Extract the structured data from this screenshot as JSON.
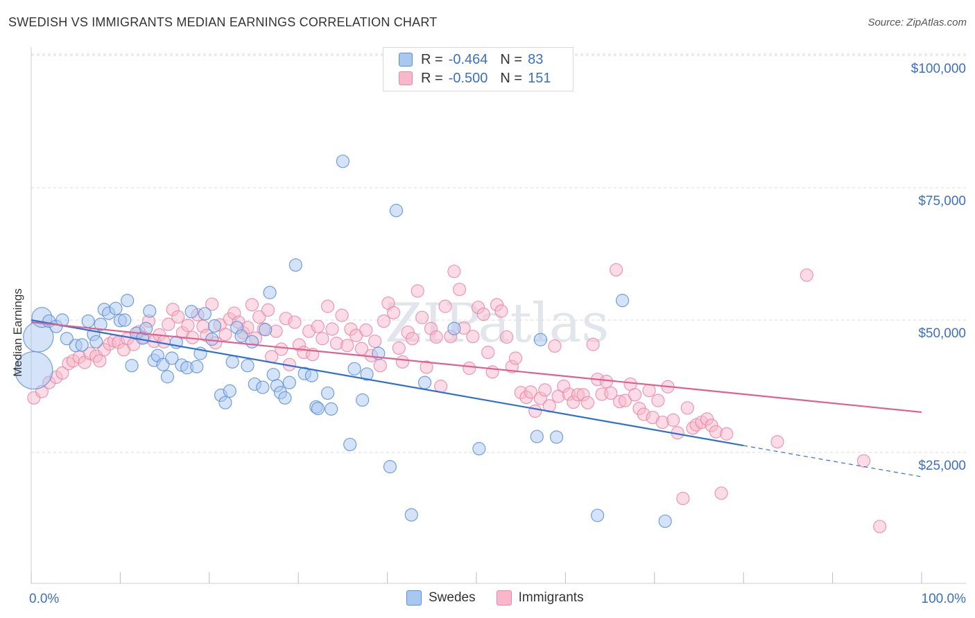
{
  "title": "SWEDISH VS IMMIGRANTS MEDIAN EARNINGS CORRELATION CHART",
  "source": "Source: ZipAtlas.com",
  "watermark": "ZIPatlas",
  "legend": {
    "swedes": {
      "r_label": "R =",
      "r_value": "-0.464",
      "n_label": "N =",
      "n_value": "83"
    },
    "immigrants": {
      "r_label": "R =",
      "r_value": "-0.500",
      "n_label": "N =",
      "n_value": "151"
    }
  },
  "colors": {
    "swedes_fill": "#a9c8f0",
    "swedes_stroke": "#5a8fd6",
    "swedes_line": "#2f6fd0",
    "immigrants_fill": "#f7b8cb",
    "immigrants_stroke": "#e987a6",
    "immigrants_line": "#e0608c",
    "tick_label": "#3a6fc4",
    "grid": "#d9d9d9"
  },
  "chart_data": {
    "type": "scatter",
    "xlabel": "",
    "ylabel": "Median Earnings",
    "xlim": [
      0,
      100
    ],
    "ylim": [
      5000,
      105000
    ],
    "x_tick_labels": [
      "0.0%",
      "100.0%"
    ],
    "y_ticks": [
      25000,
      50000,
      75000,
      100000
    ],
    "y_tick_labels": [
      "$25,000",
      "$50,000",
      "$75,000",
      "$100,000"
    ],
    "grid": true,
    "legend_position": "top-center",
    "series": [
      {
        "name": "Swedes",
        "trend": {
          "x0": 0,
          "y0": 50000,
          "x1": 80,
          "y1": 26300,
          "dashed_to_x": 100,
          "dashed_to_y": 20400
        },
        "points": [
          [
            0.3,
            40500,
            3
          ],
          [
            0.8,
            46800,
            2.4
          ],
          [
            1.2,
            50500,
            1.6
          ],
          [
            2,
            49800,
            1
          ],
          [
            2.8,
            48800,
            1
          ],
          [
            3.5,
            50000,
            1
          ],
          [
            4,
            46500,
            1
          ],
          [
            5,
            45200,
            1
          ],
          [
            5.7,
            45300,
            1
          ],
          [
            6.4,
            49800,
            1
          ],
          [
            7,
            47300,
            1
          ],
          [
            7.3,
            45900,
            1
          ],
          [
            7.8,
            49200,
            1
          ],
          [
            8.2,
            52000,
            1
          ],
          [
            8.7,
            51300,
            1
          ],
          [
            9.5,
            52200,
            1
          ],
          [
            10,
            49900,
            1
          ],
          [
            10.5,
            50000,
            1
          ],
          [
            10.8,
            53700,
            1
          ],
          [
            11.3,
            41400,
            1
          ],
          [
            11.8,
            47500,
            1
          ],
          [
            12.5,
            46600,
            1
          ],
          [
            12.9,
            48400,
            1
          ],
          [
            13.3,
            51700,
            1
          ],
          [
            13.8,
            42400,
            1
          ],
          [
            14.2,
            43300,
            1
          ],
          [
            14.8,
            41600,
            1
          ],
          [
            15.3,
            39300,
            1
          ],
          [
            15.8,
            42800,
            1
          ],
          [
            16.3,
            45800,
            1
          ],
          [
            16.9,
            41500,
            1
          ],
          [
            17.5,
            41000,
            1
          ],
          [
            18,
            51600,
            1
          ],
          [
            18.6,
            41200,
            1
          ],
          [
            19,
            43700,
            1
          ],
          [
            19.5,
            51200,
            1
          ],
          [
            20.3,
            46400,
            1
          ],
          [
            20.6,
            48900,
            1
          ],
          [
            21.3,
            35800,
            1
          ],
          [
            21.8,
            34400,
            1
          ],
          [
            22.3,
            36600,
            1
          ],
          [
            22.6,
            42100,
            1
          ],
          [
            23.1,
            48600,
            1
          ],
          [
            23.6,
            47000,
            1
          ],
          [
            24.3,
            41400,
            1
          ],
          [
            24.8,
            45900,
            1
          ],
          [
            25.1,
            37900,
            1
          ],
          [
            26,
            37300,
            1
          ],
          [
            26.3,
            48200,
            1
          ],
          [
            26.8,
            55200,
            1
          ],
          [
            27.2,
            39700,
            1
          ],
          [
            27.6,
            37600,
            1
          ],
          [
            28,
            36300,
            1
          ],
          [
            28.5,
            35300,
            1
          ],
          [
            29,
            38200,
            1
          ],
          [
            29.7,
            60400,
            1
          ],
          [
            30.7,
            39900,
            1
          ],
          [
            31.5,
            39500,
            1
          ],
          [
            32,
            33600,
            1
          ],
          [
            32.2,
            33300,
            1
          ],
          [
            33.3,
            36200,
            1
          ],
          [
            33.7,
            33200,
            1
          ],
          [
            35,
            80000,
            1
          ],
          [
            35.8,
            26500,
            1
          ],
          [
            36.3,
            40800,
            1
          ],
          [
            37.2,
            34900,
            1
          ],
          [
            37.7,
            39800,
            1
          ],
          [
            39,
            43700,
            1
          ],
          [
            40.3,
            22300,
            1
          ],
          [
            41,
            70700,
            1
          ],
          [
            42.7,
            13200,
            1
          ],
          [
            44.2,
            38200,
            1
          ],
          [
            47.5,
            48400,
            1
          ],
          [
            50.3,
            25700,
            1
          ],
          [
            56.8,
            28000,
            1
          ],
          [
            57.2,
            46300,
            1
          ],
          [
            59,
            27900,
            1
          ],
          [
            63.6,
            13100,
            1
          ],
          [
            66.4,
            53700,
            1
          ],
          [
            71.2,
            12000,
            1
          ]
        ]
      },
      {
        "name": "Immigrants",
        "trend": {
          "x0": 0,
          "y0": 49600,
          "x1": 100,
          "y1": 32600
        },
        "points": [
          [
            0.3,
            35300,
            1
          ],
          [
            1.2,
            36500,
            1
          ],
          [
            2,
            38200,
            1
          ],
          [
            2.8,
            39200,
            1
          ],
          [
            3.5,
            40000,
            1
          ],
          [
            4.2,
            41800,
            1
          ],
          [
            4.7,
            42300,
            1
          ],
          [
            5.4,
            43000,
            1
          ],
          [
            6,
            42000,
            1
          ],
          [
            6.6,
            43700,
            1
          ],
          [
            7.3,
            43200,
            1
          ],
          [
            7.7,
            42300,
            1
          ],
          [
            8.2,
            44400,
            1
          ],
          [
            8.8,
            45500,
            1
          ],
          [
            9.3,
            46100,
            1
          ],
          [
            9.8,
            45800,
            1
          ],
          [
            10.4,
            44400,
            1
          ],
          [
            10.8,
            46500,
            1
          ],
          [
            11.5,
            45400,
            1
          ],
          [
            12.1,
            47800,
            1
          ],
          [
            12.7,
            46700,
            1
          ],
          [
            13.2,
            49800,
            1
          ],
          [
            13.8,
            46000,
            1
          ],
          [
            14.4,
            47200,
            1
          ],
          [
            14.9,
            45900,
            1
          ],
          [
            15.4,
            49200,
            1
          ],
          [
            15.9,
            52000,
            1
          ],
          [
            16.5,
            50600,
            1
          ],
          [
            17,
            47600,
            1
          ],
          [
            17.6,
            49000,
            1
          ],
          [
            18.1,
            46700,
            1
          ],
          [
            18.7,
            51000,
            1
          ],
          [
            19.3,
            48800,
            1
          ],
          [
            19.7,
            47100,
            1
          ],
          [
            20.3,
            53000,
            1
          ],
          [
            20.7,
            45700,
            1
          ],
          [
            21.2,
            49100,
            1
          ],
          [
            21.8,
            47300,
            1
          ],
          [
            22.3,
            50200,
            1
          ],
          [
            22.8,
            51300,
            1
          ],
          [
            23.3,
            49600,
            1
          ],
          [
            23.8,
            47600,
            1
          ],
          [
            24.3,
            48600,
            1
          ],
          [
            24.8,
            52900,
            1
          ],
          [
            25.2,
            46600,
            1
          ],
          [
            25.6,
            50600,
            1
          ],
          [
            26.1,
            48300,
            1
          ],
          [
            26.6,
            51900,
            1
          ],
          [
            27,
            43100,
            1
          ],
          [
            27.5,
            47900,
            1
          ],
          [
            28.1,
            44500,
            1
          ],
          [
            28.6,
            50300,
            1
          ],
          [
            29,
            41600,
            1
          ],
          [
            29.6,
            49600,
            1
          ],
          [
            30.1,
            45300,
            1
          ],
          [
            30.6,
            43900,
            1
          ],
          [
            31.2,
            47900,
            1
          ],
          [
            31.6,
            43500,
            1
          ],
          [
            32.2,
            48800,
            1
          ],
          [
            32.7,
            46500,
            1
          ],
          [
            33.3,
            52600,
            1
          ],
          [
            33.8,
            48300,
            1
          ],
          [
            34.3,
            45600,
            1
          ],
          [
            34.9,
            50900,
            1
          ],
          [
            35.5,
            45200,
            1
          ],
          [
            35.9,
            48300,
            1
          ],
          [
            36.5,
            47100,
            1
          ],
          [
            37.1,
            44600,
            1
          ],
          [
            37.6,
            48100,
            1
          ],
          [
            38.2,
            43300,
            1
          ],
          [
            38.6,
            46000,
            1
          ],
          [
            39.2,
            41400,
            1
          ],
          [
            39.6,
            49800,
            1
          ],
          [
            40.1,
            53200,
            1
          ],
          [
            40.7,
            51400,
            1
          ],
          [
            41.3,
            44700,
            1
          ],
          [
            41.7,
            42100,
            1
          ],
          [
            42.3,
            47700,
            1
          ],
          [
            42.8,
            46500,
            1
          ],
          [
            43.4,
            55500,
            1
          ],
          [
            43.9,
            50500,
            1
          ],
          [
            44.4,
            41100,
            1
          ],
          [
            44.9,
            48400,
            1
          ],
          [
            45.5,
            46800,
            1
          ],
          [
            46,
            37500,
            1
          ],
          [
            46.5,
            52600,
            1
          ],
          [
            47.1,
            46900,
            1
          ],
          [
            47.5,
            59200,
            1
          ],
          [
            48.1,
            55800,
            1
          ],
          [
            48.6,
            48500,
            1
          ],
          [
            49.2,
            40900,
            1
          ],
          [
            49.6,
            46900,
            1
          ],
          [
            50.2,
            52400,
            1
          ],
          [
            50.8,
            51100,
            1
          ],
          [
            51.3,
            43900,
            1
          ],
          [
            51.8,
            40200,
            1
          ],
          [
            52.3,
            52900,
            1
          ],
          [
            52.8,
            51700,
            1
          ],
          [
            53.4,
            46800,
            1
          ],
          [
            54,
            41200,
            1
          ],
          [
            54.4,
            42800,
            1
          ],
          [
            55,
            36300,
            1
          ],
          [
            55.6,
            35400,
            1
          ],
          [
            56.1,
            36400,
            1
          ],
          [
            56.6,
            32800,
            1
          ],
          [
            57.2,
            35200,
            1
          ],
          [
            57.7,
            36800,
            1
          ],
          [
            58.2,
            33800,
            1
          ],
          [
            58.8,
            45100,
            1
          ],
          [
            59.2,
            35600,
            1
          ],
          [
            59.8,
            37500,
            1
          ],
          [
            60.4,
            36000,
            1
          ],
          [
            60.9,
            34500,
            1
          ],
          [
            61.4,
            35900,
            1
          ],
          [
            62,
            35900,
            1
          ],
          [
            62.5,
            34400,
            1
          ],
          [
            63.1,
            45400,
            1
          ],
          [
            63.6,
            38800,
            1
          ],
          [
            64.1,
            36000,
            1
          ],
          [
            64.6,
            38400,
            1
          ],
          [
            65.1,
            36200,
            1
          ],
          [
            65.7,
            59500,
            1
          ],
          [
            66.1,
            34600,
            1
          ],
          [
            66.7,
            34800,
            1
          ],
          [
            67.3,
            37900,
            1
          ],
          [
            67.8,
            35900,
            1
          ],
          [
            68.3,
            33300,
            1
          ],
          [
            68.8,
            32200,
            1
          ],
          [
            69.4,
            36700,
            1
          ],
          [
            69.8,
            31600,
            1
          ],
          [
            70.4,
            34800,
            1
          ],
          [
            70.9,
            30700,
            1
          ],
          [
            71.5,
            37400,
            1
          ],
          [
            72.1,
            31100,
            1
          ],
          [
            72.6,
            28700,
            1
          ],
          [
            73.2,
            16300,
            1
          ],
          [
            73.7,
            33400,
            1
          ],
          [
            74.3,
            29600,
            1
          ],
          [
            74.7,
            30200,
            1
          ],
          [
            75.3,
            30700,
            1
          ],
          [
            75.9,
            31300,
            1
          ],
          [
            76.4,
            30100,
            1
          ],
          [
            76.9,
            28900,
            1
          ],
          [
            77.5,
            17300,
            1
          ],
          [
            78.1,
            28500,
            1
          ],
          [
            83.8,
            27000,
            1
          ],
          [
            87.1,
            58500,
            1
          ],
          [
            93.5,
            23400,
            1
          ],
          [
            95.3,
            11000,
            1
          ]
        ]
      }
    ]
  }
}
